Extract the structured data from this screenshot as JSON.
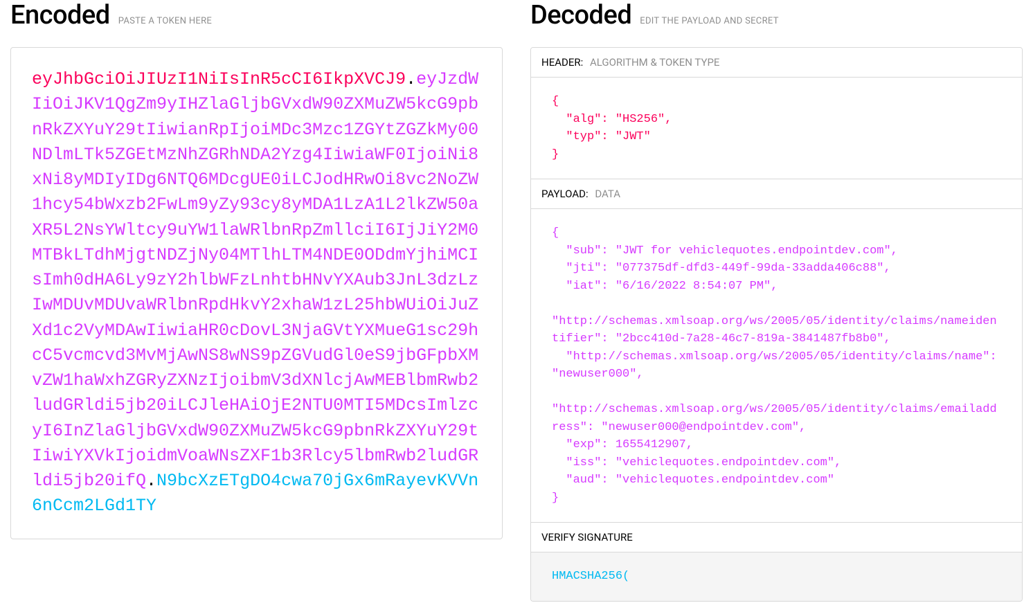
{
  "encoded": {
    "title": "Encoded",
    "subtitle": "PASTE A TOKEN HERE",
    "jwt_header": "eyJhbGciOiJIUzI1NiIsInR5cCI6IkpXVCJ9",
    "jwt_payload": "eyJzdWIiOiJKV1QgZm9yIHZlaGljbGVxdW90ZXMuZW5kcG9pbnRkZXYuY29tIiwianRpIjoiMDc3Mzc1ZGYtZGZkMy00NDlmLTk5ZGEtMzNhZGRhNDA2Yzg4IiwiaWF0IjoiNi8xNi8yMDIyIDg6NTQ6MDcgUE0iLCJodHRwOi8vc2NoZW1hcy54bWxzb2FwLm9yZy93cy8yMDA1LzA1L2lkZW50aXR5L2NsYWltcy9uYW1laWRlbnRpZmllciI6IjJiY2M0MTBkLTdhMjgtNDZjNy04MTlhLTM4NDE0ODdmYjhiMCIsImh0dHA6Ly9zY2hlbWFzLnhtbHNvYXAub3JnL3dzLzIwMDUvMDUvaWRlbnRpdHkvY2xhaW1zL25hbWUiOiJuZXd1c2VyMDAwIiwiaHR0cDovL3NjaGVtYXMueG1sc29hcC5vcmcvd3MvMjAwNS8wNS9pZGVudGl0eS9jbGFpbXMvZW1haWxhZGRyZXNzIjoibmV3dXNlcjAwMEBlbmRwb2ludGRldi5jb20iLCJleHAiOjE2NTU0MTI5MDcsImlzcyI6InZlaGljbGVxdW90ZXMuZW5kcG9pbnRkZXYuY29tIiwiYXVkIjoidmVoaWNsZXF1b3Rlcy5lbmRwb2ludGRldi5jb20ifQ",
    "jwt_signature": "N9bcXzETgDO4cwa70jGx6mRayevKVVn6nCcm2LGd1TY",
    "dot": "."
  },
  "decoded": {
    "title": "Decoded",
    "subtitle": "EDIT THE PAYLOAD AND SECRET",
    "header_section": {
      "label": "HEADER:",
      "sublabel": "ALGORITHM & TOKEN TYPE",
      "json": "{\n  \"alg\": \"HS256\",\n  \"typ\": \"JWT\"\n}"
    },
    "payload_section": {
      "label": "PAYLOAD:",
      "sublabel": "DATA",
      "json": "{\n  \"sub\": \"JWT for vehiclequotes.endpointdev.com\",\n  \"jti\": \"077375df-dfd3-449f-99da-33adda406c88\",\n  \"iat\": \"6/16/2022 8:54:07 PM\",\n  \"http://schemas.xmlsoap.org/ws/2005/05/identity/claims/nameidentifier\": \"2bcc410d-7a28-46c7-819a-3841487fb8b0\",\n  \"http://schemas.xmlsoap.org/ws/2005/05/identity/claims/name\": \"newuser000\",\n  \"http://schemas.xmlsoap.org/ws/2005/05/identity/claims/emailaddress\": \"newuser000@endpointdev.com\",\n  \"exp\": 1655412907,\n  \"iss\": \"vehiclequotes.endpointdev.com\",\n  \"aud\": \"vehiclequotes.endpointdev.com\"\n}"
    },
    "signature_section": {
      "label": "VERIFY SIGNATURE",
      "code": "HMACSHA256("
    }
  },
  "colors": {
    "jwt_header": "#fb015b",
    "jwt_payload": "#d63aff",
    "jwt_signature": "#00b9f1",
    "subtitle_gray": "#8e8e8e",
    "border": "#d8d8d8",
    "signature_bg": "#f5f5f5"
  }
}
